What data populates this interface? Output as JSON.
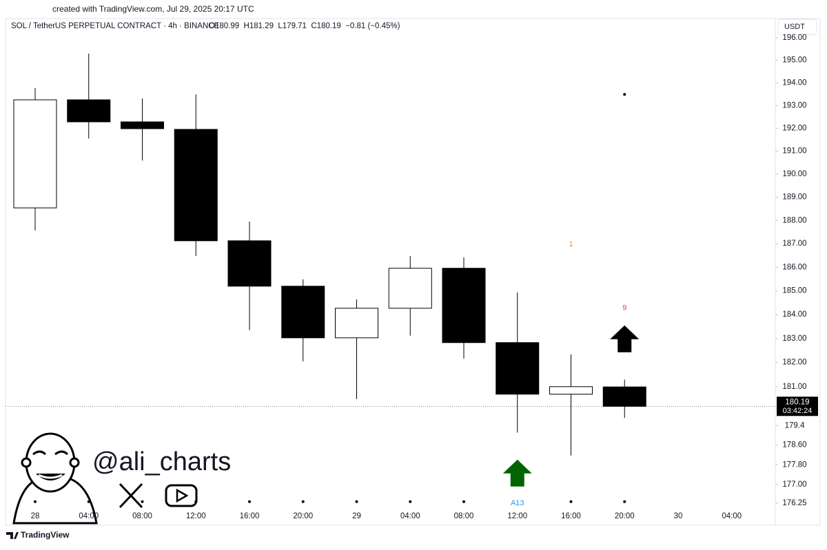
{
  "watermark_top": "created with TradingView.com, Jul 29, 2025 20:17 UTC",
  "brand": "TradingView",
  "handle": "@ali_charts",
  "chart_data": {
    "type": "candlestick",
    "title": "SOL / TetherUS PERPETUAL CONTRACT · 4h · BINANCE",
    "ohlc_text": "O180.99  H181.29  L179.71  C180.19  −0.81 (−0.45%)",
    "y_axis_label": "USDT",
    "log_scale": true,
    "categories": [
      "28",
      "04:00",
      "08:00",
      "12:00",
      "16:00",
      "20:00",
      "29",
      "04:00",
      "08:00",
      "12:00",
      "16:00",
      "20:00",
      "30",
      "04:00"
    ],
    "open": [
      188.54,
      193.25,
      192.28,
      191.95,
      187.13,
      185.2,
      183.03,
      184.27,
      185.96,
      182.83,
      180.69,
      180.99,
      null,
      null
    ],
    "high": [
      193.77,
      195.3,
      193.31,
      193.49,
      187.95,
      185.49,
      184.64,
      186.48,
      186.42,
      184.94,
      182.34,
      181.29,
      null,
      null
    ],
    "low": [
      187.57,
      191.55,
      190.59,
      186.48,
      183.35,
      182.05,
      180.49,
      183.12,
      182.17,
      179.11,
      178.18,
      179.71,
      null,
      null
    ],
    "close": [
      193.25,
      192.28,
      191.98,
      187.13,
      185.2,
      183.03,
      184.27,
      185.96,
      182.83,
      180.69,
      181.0,
      180.19,
      null,
      null
    ],
    "up_color": "#ffffff",
    "down_color": "#000000",
    "edge_color": "#000000",
    "ylim": [
      176.0,
      196.28
    ],
    "yticks": [
      {
        "value": 196,
        "label": "196.00"
      },
      {
        "value": 195,
        "label": "195.00"
      },
      {
        "value": 194,
        "label": "194.00"
      },
      {
        "value": 193,
        "label": "193.00"
      },
      {
        "value": 192,
        "label": "192.00"
      },
      {
        "value": 191,
        "label": "191.00"
      },
      {
        "value": 190,
        "label": "190.00"
      },
      {
        "value": 189,
        "label": "189.00"
      },
      {
        "value": 188,
        "label": "188.00"
      },
      {
        "value": 187,
        "label": "187.00"
      },
      {
        "value": 186,
        "label": "186.00"
      },
      {
        "value": 185,
        "label": "185.00"
      },
      {
        "value": 184,
        "label": "184.00"
      },
      {
        "value": 183,
        "label": "183.00"
      },
      {
        "value": 182,
        "label": "182.00"
      },
      {
        "value": 181,
        "label": "181.00"
      },
      179.4,
      {
        "value": 178.6,
        "label": "178.60"
      },
      {
        "value": 177.8,
        "label": "177.80"
      },
      {
        "value": 177,
        "label": "177.00"
      },
      176.25
    ],
    "last_price": 180.19,
    "countdown": "03:42:24",
    "markers": [
      {
        "shape": "dot",
        "index": 11,
        "price": 193.49,
        "color": "#000000"
      },
      {
        "shape": "text",
        "text": "1",
        "index": 10,
        "price": 186.98,
        "color": "#f7931a"
      },
      {
        "shape": "text",
        "text": "9",
        "index": 11,
        "price": 184.27,
        "color": "#f23645"
      },
      {
        "shape": "arrow",
        "index": 11,
        "price": 183.55,
        "color": "#000000"
      },
      {
        "shape": "arrow",
        "index": 9,
        "price": 178.01,
        "color": "#006400"
      },
      {
        "shape": "dot",
        "index": 0,
        "price": 176.31,
        "color": "#000000"
      },
      {
        "shape": "dot",
        "index": 1,
        "price": 176.31,
        "color": "#000000"
      },
      {
        "shape": "dot",
        "index": 2,
        "price": 176.31,
        "color": "#000000"
      },
      {
        "shape": "dot",
        "index": 3,
        "price": 176.31,
        "color": "#000000"
      },
      {
        "shape": "dot",
        "index": 4,
        "price": 176.31,
        "color": "#000000"
      },
      {
        "shape": "dot",
        "index": 5,
        "price": 176.31,
        "color": "#000000"
      },
      {
        "shape": "dot",
        "index": 6,
        "price": 176.31,
        "color": "#000000"
      },
      {
        "shape": "dot",
        "index": 7,
        "price": 176.31,
        "color": "#000000"
      },
      {
        "shape": "dot",
        "index": 8,
        "price": 176.31,
        "color": "#000000"
      },
      {
        "shape": "text",
        "text": "A13",
        "index": 9,
        "price": 176.25,
        "color": "#2196f3"
      },
      {
        "shape": "dot",
        "index": 10,
        "price": 176.31,
        "color": "#000000"
      },
      {
        "shape": "dot",
        "index": 11,
        "price": 176.31,
        "color": "#000000"
      }
    ]
  }
}
